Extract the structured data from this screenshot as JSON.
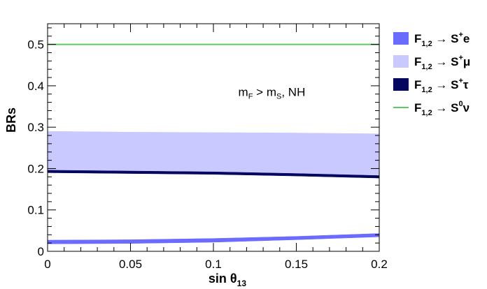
{
  "chart_data": {
    "type": "area",
    "title": "",
    "xlabel": "sin θ13",
    "xlabel_main": "sin θ",
    "xlabel_sub": "13",
    "ylabel": "BRs",
    "xlim": [
      0,
      0.2
    ],
    "ylim": [
      0,
      0.55
    ],
    "x_ticks": [
      0,
      0.05,
      0.1,
      0.15,
      0.2
    ],
    "x_tick_labels": [
      "0",
      "0.05",
      "0.1",
      "0.15",
      "0.2"
    ],
    "y_ticks": [
      0,
      0.1,
      0.2,
      0.3,
      0.4,
      0.5
    ],
    "y_tick_labels": [
      "0",
      "0.1",
      "0.2",
      "0.3",
      "0.4",
      "0.5"
    ],
    "grid": false,
    "legend_position": "right",
    "annotation": {
      "text": "mF > mS, NH",
      "p1": "m",
      "s1": "F",
      "p2": " > m",
      "s2": "S",
      "p3": ", NH",
      "x": 0.115,
      "y": 0.375
    },
    "series": [
      {
        "name": "F1,2 → S+e",
        "label": {
          "main": "F",
          "sub": "1,2",
          "arrow": " → S",
          "sup": "+",
          "tail": "e"
        },
        "color": "#6b6bff",
        "x": [
          0,
          0.05,
          0.1,
          0.15,
          0.2
        ],
        "lower": [
          0.018,
          0.019,
          0.022,
          0.028,
          0.035
        ],
        "upper": [
          0.027,
          0.028,
          0.031,
          0.036,
          0.043
        ]
      },
      {
        "name": "F1,2 → S+μ",
        "label": {
          "main": "F",
          "sub": "1,2",
          "arrow": " → S",
          "sup": "+",
          "tail": "μ"
        },
        "color": "#c9c9ff",
        "x": [
          0,
          0.05,
          0.1,
          0.15,
          0.2
        ],
        "lower": [
          0.19,
          0.19,
          0.188,
          0.186,
          0.183
        ],
        "upper": [
          0.29,
          0.288,
          0.287,
          0.286,
          0.284
        ]
      },
      {
        "name": "F1,2 → S+τ",
        "label": {
          "main": "F",
          "sub": "1,2",
          "arrow": " → S",
          "sup": "+",
          "tail": "τ"
        },
        "color": "#05065e",
        "x": [
          0,
          0.05,
          0.1,
          0.15,
          0.2
        ],
        "lower": [
          0.19,
          0.188,
          0.186,
          0.182,
          0.177
        ],
        "upper": [
          0.196,
          0.194,
          0.192,
          0.188,
          0.183
        ]
      },
      {
        "name": "F1,2 → S0ν",
        "label": {
          "main": "F",
          "sub": "1,2",
          "arrow": " → S",
          "sup": "0",
          "tail": "ν"
        },
        "color": "#5ec95e",
        "style": "line",
        "x": [
          0,
          0.2
        ],
        "values": [
          0.5,
          0.5
        ]
      }
    ]
  }
}
